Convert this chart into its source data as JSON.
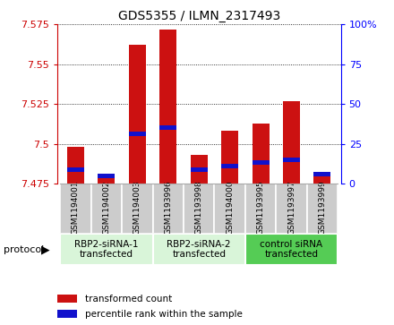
{
  "title": "GDS5355 / ILMN_2317493",
  "samples": [
    "GSM1194001",
    "GSM1194002",
    "GSM1194003",
    "GSM1193996",
    "GSM1193998",
    "GSM1194000",
    "GSM1193995",
    "GSM1193997",
    "GSM1193999"
  ],
  "red_values": [
    7.498,
    7.479,
    7.562,
    7.572,
    7.493,
    7.508,
    7.513,
    7.527,
    7.482
  ],
  "blue_values": [
    7.484,
    7.48,
    7.506,
    7.51,
    7.484,
    7.486,
    7.488,
    7.49,
    7.481
  ],
  "blue_heights": [
    0.0028,
    0.0028,
    0.0028,
    0.0028,
    0.0028,
    0.0028,
    0.0028,
    0.0028,
    0.0028
  ],
  "ymin": 7.475,
  "ymax": 7.575,
  "yticks": [
    7.475,
    7.5,
    7.525,
    7.55,
    7.575
  ],
  "ytick_labels": [
    "7.475",
    "7.5",
    "7.525",
    "7.55",
    "7.575"
  ],
  "y2min": 0,
  "y2max": 100,
  "y2ticks": [
    0,
    25,
    50,
    75,
    100
  ],
  "y2tick_labels": [
    "0",
    "25",
    "50",
    "75",
    "100%"
  ],
  "groups": [
    {
      "label": "RBP2-siRNA-1\ntransfected",
      "start": 0,
      "end": 3,
      "color": "#d9f5d9"
    },
    {
      "label": "RBP2-siRNA-2\ntransfected",
      "start": 3,
      "end": 6,
      "color": "#d9f5d9"
    },
    {
      "label": "control siRNA\ntransfected",
      "start": 6,
      "end": 9,
      "color": "#55cc55"
    }
  ],
  "bar_width": 0.55,
  "bar_color_red": "#cc1111",
  "bar_color_blue": "#1111cc",
  "background_gray": "#cccccc",
  "protocol_label": "protocol",
  "legend_red": "transformed count",
  "legend_blue": "percentile rank within the sample"
}
